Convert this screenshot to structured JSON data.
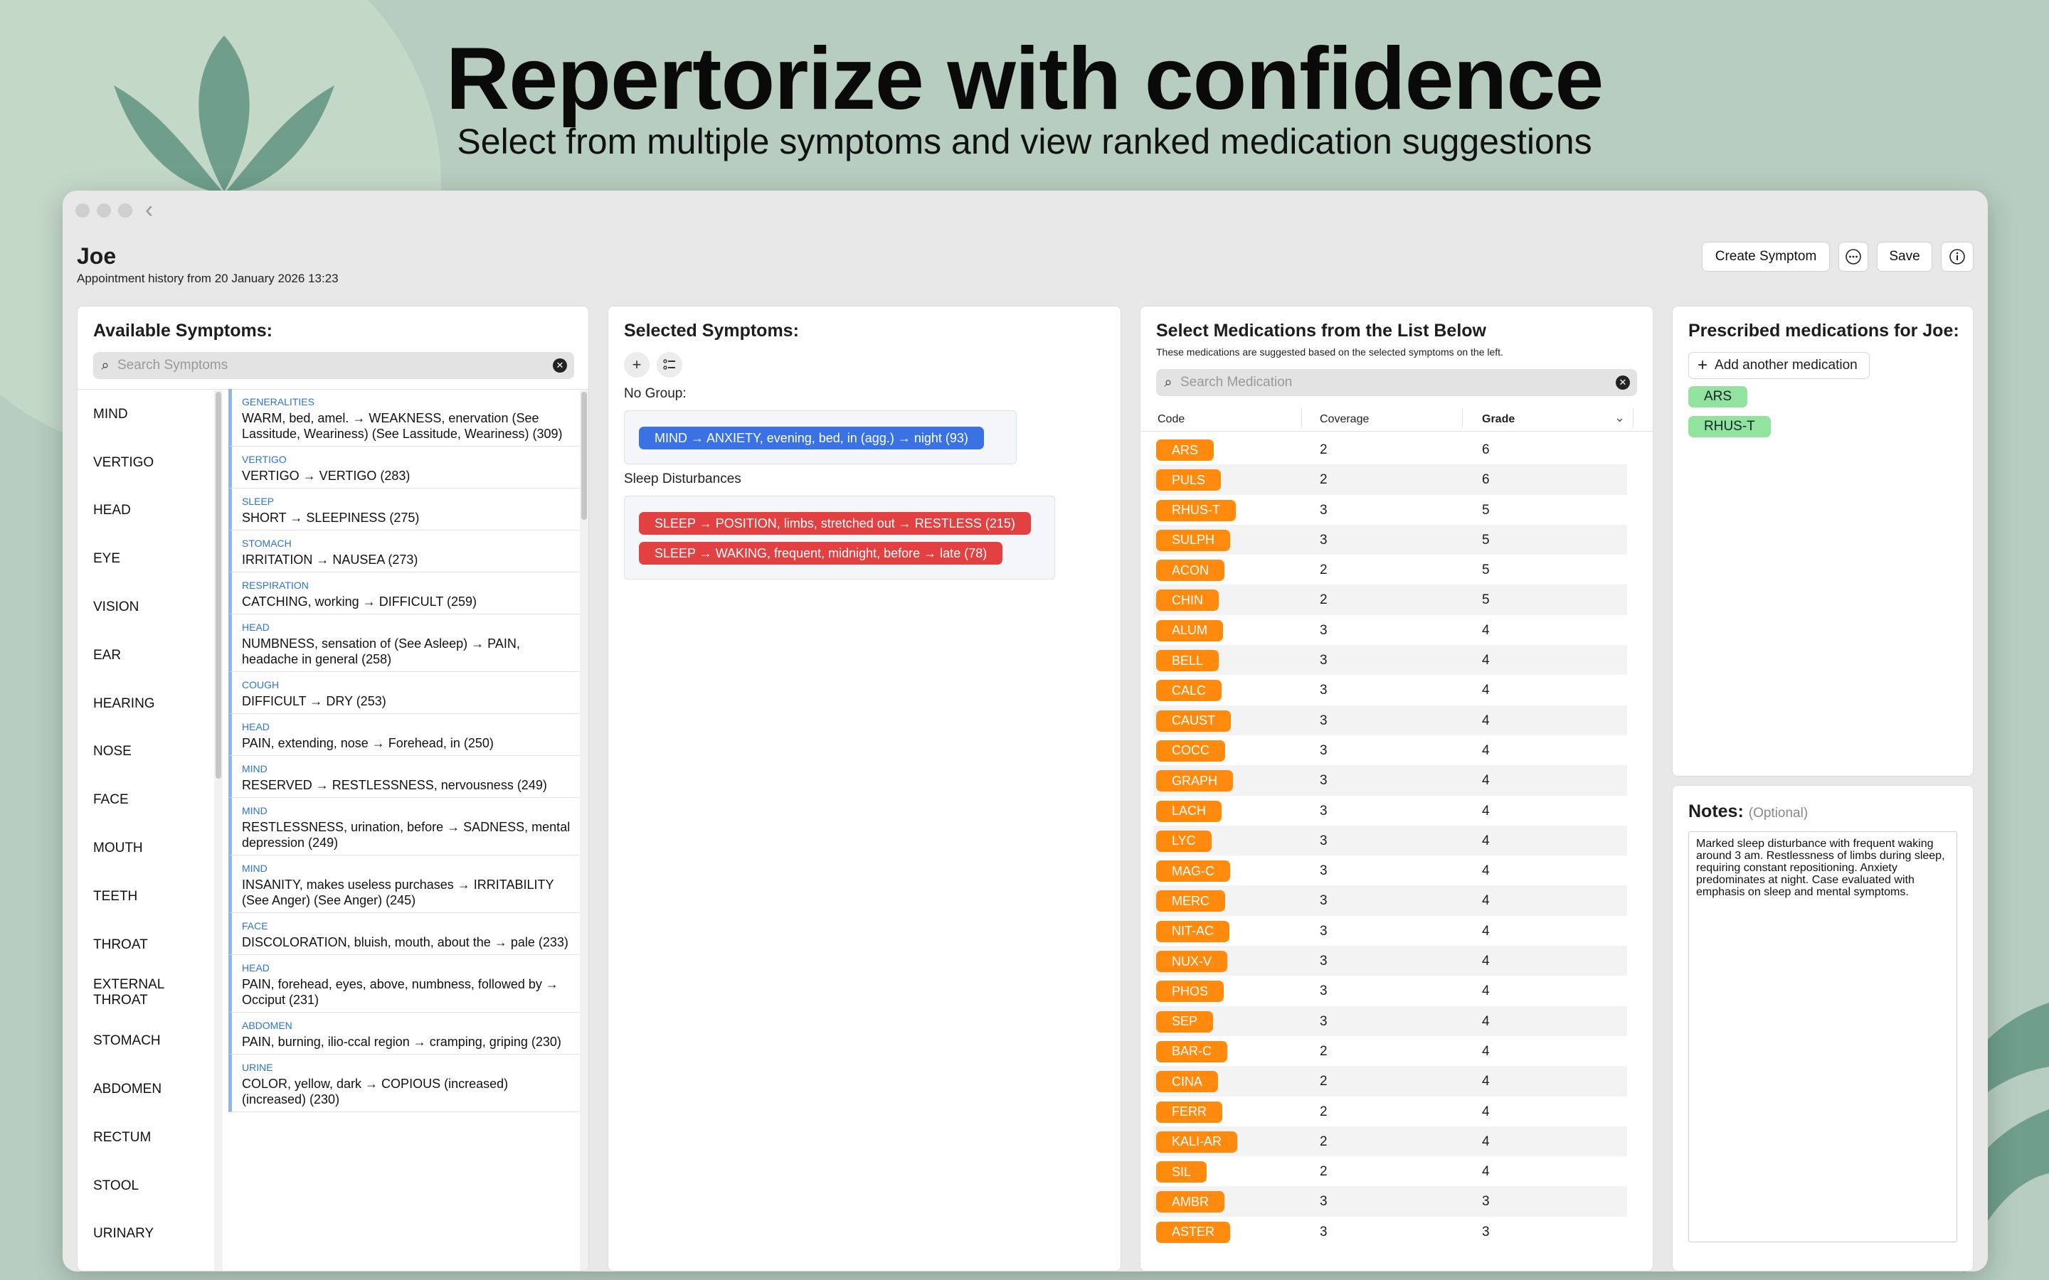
{
  "hero": {
    "title": "Repertorize with confidence",
    "subtitle": "Select from multiple symptoms and view ranked medication suggestions"
  },
  "header": {
    "patient_name": "Joe",
    "history": "Appointment history from 20 January 2026 13:23",
    "create_symptom_label": "Create Symptom",
    "save_label": "Save"
  },
  "available": {
    "title": "Available Symptoms:",
    "search_placeholder": "Search Symptoms",
    "categories": [
      "MIND",
      "VERTIGO",
      "HEAD",
      "EYE",
      "VISION",
      "EAR",
      "HEARING",
      "NOSE",
      "FACE",
      "MOUTH",
      "TEETH",
      "THROAT",
      "EXTERNAL THROAT",
      "STOMACH",
      "ABDOMEN",
      "RECTUM",
      "STOOL",
      "URINARY"
    ],
    "symptoms": [
      {
        "cat": "GENERALITIES",
        "text": "WARM, bed, amel. → WEAKNESS, enervation (See Lassitude, Weariness) (See Lassitude, Weariness) (309)"
      },
      {
        "cat": "VERTIGO",
        "text": "VERTIGO → VERTIGO (283)"
      },
      {
        "cat": "SLEEP",
        "text": "SHORT → SLEEPINESS (275)"
      },
      {
        "cat": "STOMACH",
        "text": "IRRITATION → NAUSEA (273)"
      },
      {
        "cat": "RESPIRATION",
        "text": "CATCHING, working → DIFFICULT (259)"
      },
      {
        "cat": "HEAD",
        "text": "NUMBNESS, sensation of (See Asleep) → PAIN, headache in general (258)"
      },
      {
        "cat": "COUGH",
        "text": "DIFFICULT → DRY (253)"
      },
      {
        "cat": "HEAD",
        "text": "PAIN, extending, nose → Forehead, in (250)"
      },
      {
        "cat": "MIND",
        "text": "RESERVED → RESTLESSNESS, nervousness (249)"
      },
      {
        "cat": "MIND",
        "text": "RESTLESSNESS, urination, before → SADNESS, mental depression (249)"
      },
      {
        "cat": "MIND",
        "text": "INSANITY, makes useless purchases → IRRITABILITY (See Anger) (See Anger) (245)"
      },
      {
        "cat": "FACE",
        "text": "DISCOLORATION, bluish, mouth, about the → pale (233)"
      },
      {
        "cat": "HEAD",
        "text": "PAIN, forehead, eyes, above, numbness, followed by → Occiput (231)"
      },
      {
        "cat": "ABDOMEN",
        "text": "PAIN, burning, ilio-ccal region → cramping, griping (230)"
      },
      {
        "cat": "URINE",
        "text": "COLOR, yellow, dark → COPIOUS (increased) (increased) (230)"
      }
    ]
  },
  "selected": {
    "title": "Selected Symptoms:",
    "no_group_label": "No Group:",
    "no_group_items": [
      "MIND → ANXIETY, evening, bed, in (agg.) → night (93)"
    ],
    "group_name": "Sleep Disturbances",
    "group_items": [
      "SLEEP → POSITION, limbs, stretched out → RESTLESS (215)",
      "SLEEP → WAKING, frequent, midnight, before → late (78)"
    ]
  },
  "medications": {
    "title": "Select Medications from the List Below",
    "subtitle": "These medications are suggested based on the selected symptoms on the left.",
    "search_placeholder": "Search Medication",
    "col_code": "Code",
    "col_coverage": "Coverage",
    "col_grade": "Grade",
    "rows": [
      {
        "code": "ARS",
        "coverage": "2",
        "grade": "6"
      },
      {
        "code": "PULS",
        "coverage": "2",
        "grade": "6"
      },
      {
        "code": "RHUS-T",
        "coverage": "3",
        "grade": "5"
      },
      {
        "code": "SULPH",
        "coverage": "3",
        "grade": "5"
      },
      {
        "code": "ACON",
        "coverage": "2",
        "grade": "5"
      },
      {
        "code": "CHIN",
        "coverage": "2",
        "grade": "5"
      },
      {
        "code": "ALUM",
        "coverage": "3",
        "grade": "4"
      },
      {
        "code": "BELL",
        "coverage": "3",
        "grade": "4"
      },
      {
        "code": "CALC",
        "coverage": "3",
        "grade": "4"
      },
      {
        "code": "CAUST",
        "coverage": "3",
        "grade": "4"
      },
      {
        "code": "COCC",
        "coverage": "3",
        "grade": "4"
      },
      {
        "code": "GRAPH",
        "coverage": "3",
        "grade": "4"
      },
      {
        "code": "LACH",
        "coverage": "3",
        "grade": "4"
      },
      {
        "code": "LYC",
        "coverage": "3",
        "grade": "4"
      },
      {
        "code": "MAG-C",
        "coverage": "3",
        "grade": "4"
      },
      {
        "code": "MERC",
        "coverage": "3",
        "grade": "4"
      },
      {
        "code": "NIT-AC",
        "coverage": "3",
        "grade": "4"
      },
      {
        "code": "NUX-V",
        "coverage": "3",
        "grade": "4"
      },
      {
        "code": "PHOS",
        "coverage": "3",
        "grade": "4"
      },
      {
        "code": "SEP",
        "coverage": "3",
        "grade": "4"
      },
      {
        "code": "BAR-C",
        "coverage": "2",
        "grade": "4"
      },
      {
        "code": "CINA",
        "coverage": "2",
        "grade": "4"
      },
      {
        "code": "FERR",
        "coverage": "2",
        "grade": "4"
      },
      {
        "code": "KALI-AR",
        "coverage": "2",
        "grade": "4"
      },
      {
        "code": "SIL",
        "coverage": "2",
        "grade": "4"
      },
      {
        "code": "AMBR",
        "coverage": "3",
        "grade": "3"
      },
      {
        "code": "ASTER",
        "coverage": "3",
        "grade": "3"
      }
    ]
  },
  "prescribed": {
    "title": "Prescribed medications for Joe:",
    "add_label": "Add another medication",
    "items": [
      "ARS",
      "RHUS-T"
    ]
  },
  "notes": {
    "title": "Notes:",
    "optional": "(Optional)",
    "text": "Marked sleep disturbance with frequent waking around 3 am. Restlessness of limbs during sleep, requiring constant repositioning. Anxiety predominates at night. Case evaluated with emphasis on sleep and mental symptoms."
  }
}
